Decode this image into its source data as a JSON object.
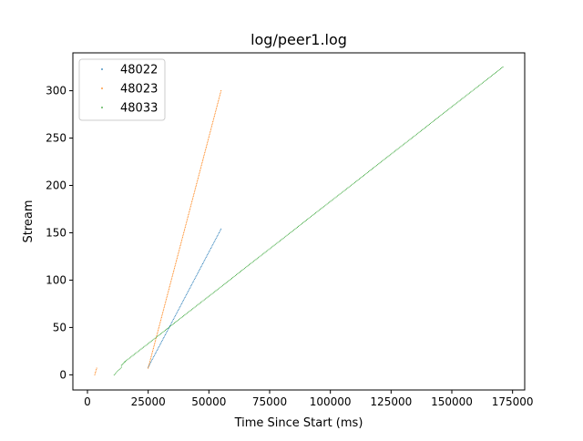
{
  "chart_data": {
    "type": "scatter",
    "title": "log/peer1.log",
    "xlabel": "Time Since Start (ms)",
    "ylabel": "Stream",
    "xlim": [
      -6000,
      180000
    ],
    "ylim": [
      -16,
      340
    ],
    "xticks": [
      0,
      25000,
      50000,
      75000,
      100000,
      125000,
      150000,
      175000
    ],
    "xtick_labels": [
      "0",
      "25000",
      "50000",
      "75000",
      "100000",
      "125000",
      "150000",
      "175000"
    ],
    "yticks": [
      0,
      50,
      100,
      150,
      200,
      250,
      300
    ],
    "ytick_labels": [
      "0",
      "50",
      "100",
      "150",
      "200",
      "250",
      "300"
    ],
    "grid": false,
    "legend_position": "top-left",
    "marker": "dot",
    "series": [
      {
        "name": "48022",
        "color": "#1f77b4",
        "segments": [
          {
            "x": [
              25000,
              55000
            ],
            "y": [
              8,
              154
            ]
          }
        ]
      },
      {
        "name": "48023",
        "color": "#ff7f0e",
        "segments": [
          {
            "x": [
              3000,
              3800
            ],
            "y": [
              0,
              7
            ]
          },
          {
            "x": [
              25000,
              55000
            ],
            "y": [
              7,
              300
            ]
          }
        ]
      },
      {
        "name": "48033",
        "color": "#2ca02c",
        "segments": [
          {
            "x": [
              11000,
              14000
            ],
            "y": [
              0,
              8
            ]
          },
          {
            "x": [
              14000,
              15500
            ],
            "y": [
              10,
              14
            ]
          },
          {
            "x": [
              15500,
              171000
            ],
            "y": [
              14,
              325
            ]
          }
        ]
      }
    ]
  }
}
